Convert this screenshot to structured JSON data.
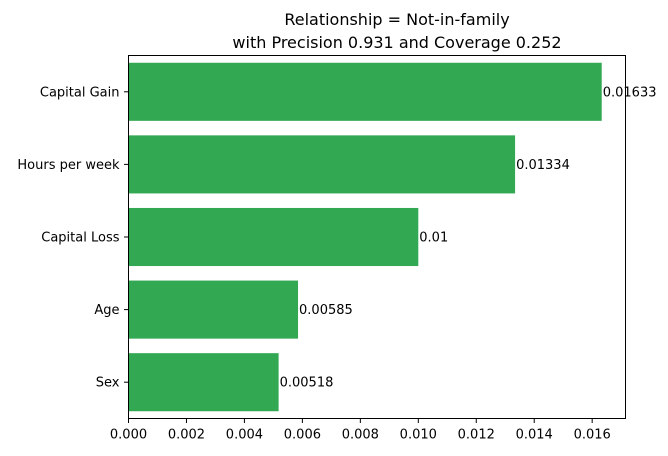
{
  "chart_data": {
    "type": "bar",
    "orientation": "horizontal",
    "title": "Relationship = Not-in-family",
    "subtitle": "with Precision 0.931 and Coverage 0.252",
    "categories": [
      "Capital Gain",
      "Hours per week",
      "Capital Loss",
      "Age",
      "Sex"
    ],
    "values": [
      0.01633,
      0.01334,
      0.01,
      0.00585,
      0.00518
    ],
    "value_labels": [
      "0.01633",
      "0.01334",
      "0.01",
      "0.00585",
      "0.00518"
    ],
    "xlim": [
      0,
      0.01715
    ],
    "xticks": [
      0,
      0.002,
      0.004,
      0.006,
      0.008,
      0.01,
      0.012,
      0.014,
      0.016
    ],
    "xtick_labels": [
      "0.000",
      "0.002",
      "0.004",
      "0.006",
      "0.008",
      "0.010",
      "0.012",
      "0.014",
      "0.016"
    ],
    "xlabel": "",
    "ylabel": "",
    "bar_color": "#33a853",
    "grid": false,
    "legend": "none"
  }
}
